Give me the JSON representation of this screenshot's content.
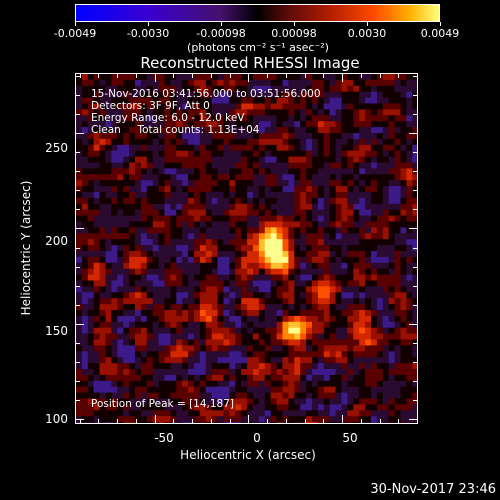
{
  "colorbar": {
    "tick_labels": [
      "-0.0049",
      "-0.0030",
      "-0.00098",
      "0.00098",
      "0.0030",
      "0.0049"
    ],
    "units": "(photons cm⁻² s⁻¹ asec⁻²)"
  },
  "title": "Reconstructed RHESSI Image",
  "info": {
    "time_range": "15-Nov-2016 03:41:56.000 to 03:51:56.000",
    "detectors": "Detectors: 3F 9F, Att 0",
    "energy": "Energy Range: 6.0 - 12.0 keV",
    "clean": "Clean     Total counts: 1.13E+04",
    "peak": "Position of Peak = [14,187]"
  },
  "axes": {
    "xlabel": "Heliocentric X (arcsec)",
    "ylabel": "Heliocentric Y (arcsec)",
    "x_ticks": [
      "-50",
      "0",
      "50"
    ],
    "y_ticks": [
      "250",
      "200",
      "150",
      "100"
    ],
    "x_range": [
      -92,
      90
    ],
    "y_range": [
      98,
      281
    ]
  },
  "timestamp": "30-Nov-2017 23:46",
  "image": {
    "peak_x": 14,
    "peak_y": 187,
    "colormap": [
      "#0000ff",
      "#44106a",
      "#000000",
      "#b21e00",
      "#ff4a00",
      "#ffb000",
      "#ffff80"
    ]
  }
}
